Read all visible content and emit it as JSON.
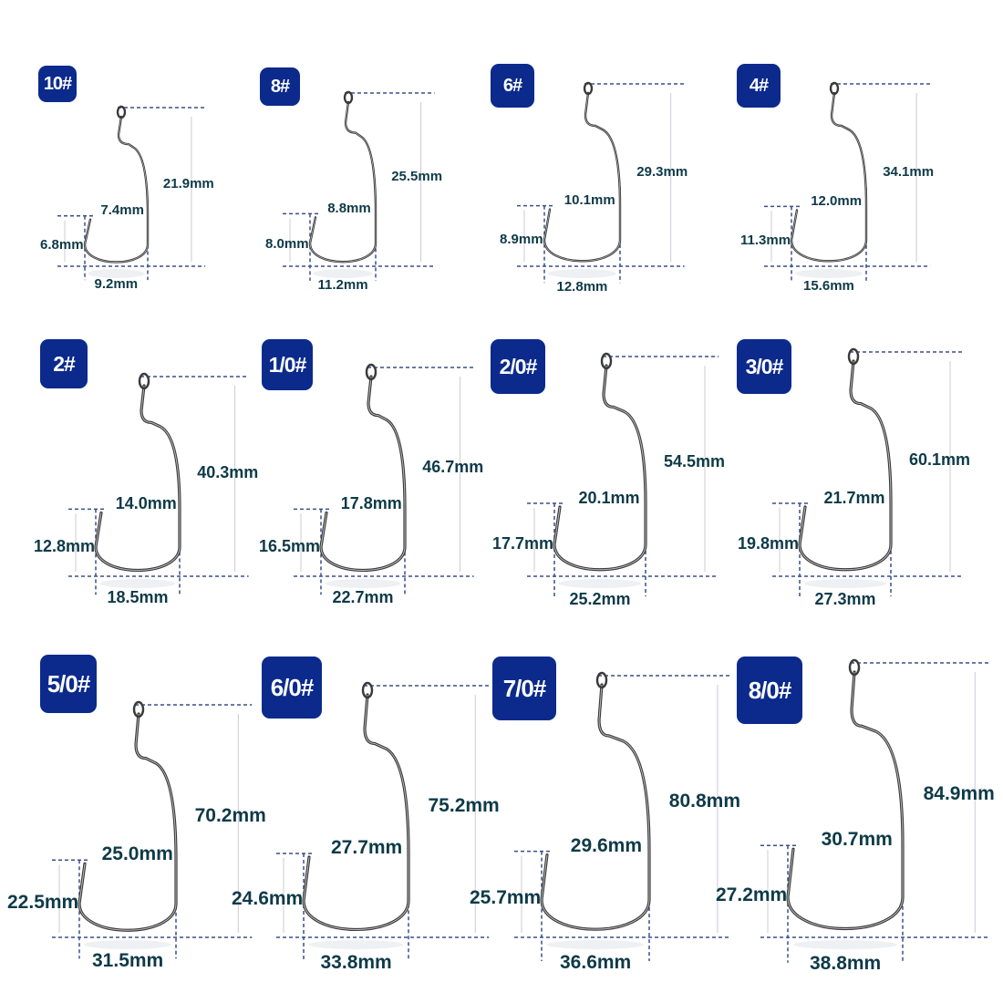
{
  "colors": {
    "badge": "#0b2a8c",
    "badge_text": "#ffffff",
    "label": "#0e3a48",
    "dash": "#3a4f8c",
    "hook": "#3a3a3a"
  },
  "hooks": [
    {
      "size": "10#",
      "length": "21.9mm",
      "gap": "7.4mm",
      "gap_height": "6.8mm",
      "width": "9.2mm"
    },
    {
      "size": "8#",
      "length": "25.5mm",
      "gap": "8.8mm",
      "gap_height": "8.0mm",
      "width": "11.2mm"
    },
    {
      "size": "6#",
      "length": "29.3mm",
      "gap": "10.1mm",
      "gap_height": "8.9mm",
      "width": "12.8mm"
    },
    {
      "size": "4#",
      "length": "34.1mm",
      "gap": "12.0mm",
      "gap_height": "11.3mm",
      "width": "15.6mm"
    },
    {
      "size": "2#",
      "length": "40.3mm",
      "gap": "14.0mm",
      "gap_height": "12.8mm",
      "width": "18.5mm"
    },
    {
      "size": "1/0#",
      "length": "46.7mm",
      "gap": "17.8mm",
      "gap_height": "16.5mm",
      "width": "22.7mm"
    },
    {
      "size": "2/0#",
      "length": "54.5mm",
      "gap": "20.1mm",
      "gap_height": "17.7mm",
      "width": "25.2mm"
    },
    {
      "size": "3/0#",
      "length": "60.1mm",
      "gap": "21.7mm",
      "gap_height": "19.8mm",
      "width": "27.3mm"
    },
    {
      "size": "5/0#",
      "length": "70.2mm",
      "gap": "25.0mm",
      "gap_height": "22.5mm",
      "width": "31.5mm"
    },
    {
      "size": "6/0#",
      "length": "75.2mm",
      "gap": "27.7mm",
      "gap_height": "24.6mm",
      "width": "33.8mm"
    },
    {
      "size": "7/0#",
      "length": "80.8mm",
      "gap": "29.6mm",
      "gap_height": "25.7mm",
      "width": "36.6mm"
    },
    {
      "size": "8/0#",
      "length": "84.9mm",
      "gap": "30.7mm",
      "gap_height": "27.2mm",
      "width": "38.8mm"
    }
  ]
}
